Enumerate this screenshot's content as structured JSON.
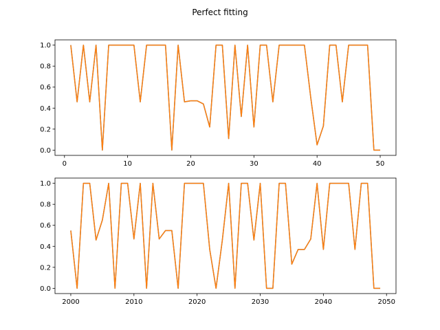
{
  "figure": {
    "title": "Perfect fitting"
  },
  "chart_data": [
    {
      "type": "line",
      "title": "",
      "xlabel": "",
      "ylabel": "",
      "xlim": [
        -1.5,
        52.5
      ],
      "ylim": [
        -0.05,
        1.05
      ],
      "xticks": [
        0,
        10,
        20,
        30,
        40,
        50
      ],
      "yticks": [
        0.0,
        0.2,
        0.4,
        0.6,
        0.8,
        1.0
      ],
      "grid": false,
      "x": [
        1,
        2,
        3,
        4,
        5,
        6,
        7,
        8,
        9,
        10,
        11,
        12,
        13,
        14,
        15,
        16,
        17,
        18,
        19,
        20,
        21,
        22,
        23,
        24,
        25,
        26,
        27,
        28,
        29,
        30,
        31,
        32,
        33,
        34,
        35,
        36,
        37,
        38,
        39,
        40,
        41,
        42,
        43,
        44,
        45,
        46,
        47,
        48,
        49,
        50
      ],
      "series": [
        {
          "color": "#1f77b4",
          "values": [
            1.0,
            0.46,
            1.0,
            0.46,
            1.0,
            0.0,
            1.0,
            1.0,
            1.0,
            1.0,
            1.0,
            0.46,
            1.0,
            1.0,
            1.0,
            1.0,
            0.0,
            1.0,
            0.46,
            0.47,
            0.47,
            0.44,
            0.22,
            1.0,
            1.0,
            0.11,
            1.0,
            0.32,
            1.0,
            0.22,
            1.0,
            1.0,
            0.46,
            1.0,
            1.0,
            1.0,
            1.0,
            1.0,
            0.5,
            0.05,
            0.23,
            1.0,
            1.0,
            0.46,
            1.0,
            1.0,
            1.0,
            1.0,
            0.0,
            0.0
          ]
        },
        {
          "color": "#ff7f0e",
          "values": [
            1.0,
            0.46,
            1.0,
            0.46,
            1.0,
            0.0,
            1.0,
            1.0,
            1.0,
            1.0,
            1.0,
            0.46,
            1.0,
            1.0,
            1.0,
            1.0,
            0.0,
            1.0,
            0.46,
            0.47,
            0.47,
            0.44,
            0.22,
            1.0,
            1.0,
            0.11,
            1.0,
            0.32,
            1.0,
            0.22,
            1.0,
            1.0,
            0.46,
            1.0,
            1.0,
            1.0,
            1.0,
            1.0,
            0.5,
            0.05,
            0.23,
            1.0,
            1.0,
            0.46,
            1.0,
            1.0,
            1.0,
            1.0,
            0.0,
            0.0
          ]
        }
      ]
    },
    {
      "type": "line",
      "title": "",
      "xlabel": "",
      "ylabel": "",
      "xlim": [
        1997.5,
        2051.5
      ],
      "ylim": [
        -0.05,
        1.05
      ],
      "xticks": [
        2000,
        2010,
        2020,
        2030,
        2040,
        2050
      ],
      "yticks": [
        0.0,
        0.2,
        0.4,
        0.6,
        0.8,
        1.0
      ],
      "grid": false,
      "x": [
        2000,
        2001,
        2002,
        2003,
        2004,
        2005,
        2006,
        2007,
        2008,
        2009,
        2010,
        2011,
        2012,
        2013,
        2014,
        2015,
        2016,
        2017,
        2018,
        2019,
        2020,
        2021,
        2022,
        2023,
        2024,
        2025,
        2026,
        2027,
        2028,
        2029,
        2030,
        2031,
        2032,
        2033,
        2034,
        2035,
        2036,
        2037,
        2038,
        2039,
        2040,
        2041,
        2042,
        2043,
        2044,
        2045,
        2046,
        2047,
        2048,
        2049
      ],
      "series": [
        {
          "color": "#1f77b4",
          "values": [
            0.55,
            0.0,
            1.0,
            1.0,
            0.46,
            0.65,
            1.0,
            0.0,
            1.0,
            1.0,
            0.47,
            1.0,
            0.0,
            1.0,
            0.47,
            0.55,
            0.55,
            0.0,
            1.0,
            1.0,
            1.0,
            1.0,
            0.37,
            0.0,
            0.46,
            1.0,
            0.0,
            1.0,
            1.0,
            0.46,
            1.0,
            0.0,
            0.0,
            1.0,
            1.0,
            0.23,
            0.37,
            0.37,
            0.47,
            1.0,
            0.37,
            1.0,
            1.0,
            1.0,
            1.0,
            0.37,
            1.0,
            1.0,
            0.0,
            0.0
          ]
        },
        {
          "color": "#ff7f0e",
          "values": [
            0.55,
            0.0,
            1.0,
            1.0,
            0.46,
            0.65,
            1.0,
            0.0,
            1.0,
            1.0,
            0.47,
            1.0,
            0.0,
            1.0,
            0.47,
            0.55,
            0.55,
            0.0,
            1.0,
            1.0,
            1.0,
            1.0,
            0.37,
            0.0,
            0.46,
            1.0,
            0.0,
            1.0,
            1.0,
            0.46,
            1.0,
            0.0,
            0.0,
            1.0,
            1.0,
            0.23,
            0.37,
            0.37,
            0.47,
            1.0,
            0.37,
            1.0,
            1.0,
            1.0,
            1.0,
            0.37,
            1.0,
            1.0,
            0.0,
            0.0
          ]
        }
      ]
    }
  ]
}
